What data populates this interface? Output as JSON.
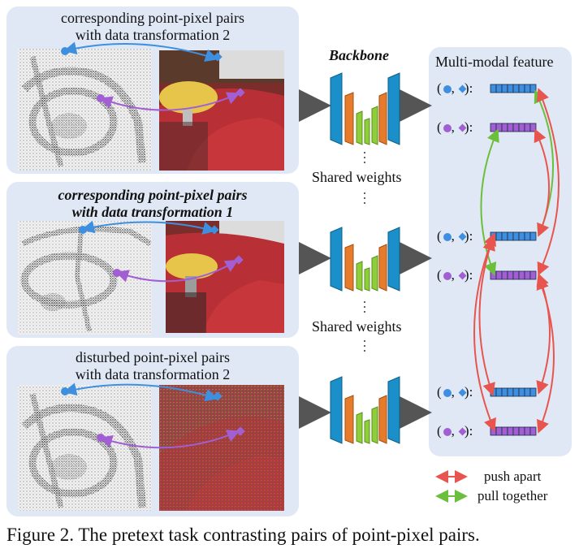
{
  "panels": [
    {
      "title_line1": "corresponding point-pixel pairs",
      "title_line2": "with data transformation 2"
    },
    {
      "title_line1": "corresponding point-pixel pairs",
      "title_line2": "with data transformation 1"
    },
    {
      "title_line1": "disturbed point-pixel pairs",
      "title_line2": "with data transformation 2"
    }
  ],
  "backbone": {
    "title": "Backbone",
    "shared_label": "Shared weights"
  },
  "multimodal": {
    "title": "Multi-modal feature",
    "label_sep": ",",
    "label_suffix": ":"
  },
  "legend": {
    "push": "push apart",
    "pull": "pull together",
    "push_color": "#e8554e",
    "pull_color": "#6cbf3c"
  },
  "colors": {
    "blue": "#3f8fe0",
    "purple": "#a25fd4",
    "panel_bg": "#dfe8f4",
    "cyan_bar": "#1b8fc9",
    "orange_bar": "#e77b2c",
    "green_bar": "#8fce3b"
  },
  "caption": "Figure 2. The pretext task contrasting pairs of point-pixel pairs."
}
